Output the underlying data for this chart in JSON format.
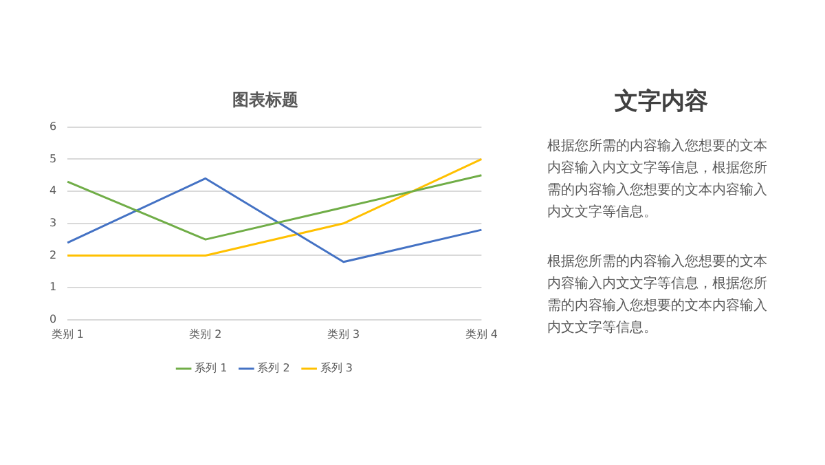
{
  "chart_data": [
    {
      "type": "line",
      "title": "图表标题",
      "categories": [
        "类别 1",
        "类别 2",
        "类别 3",
        "类别 4"
      ],
      "series": [
        {
          "name": "系列 1",
          "color": "#70ad47",
          "values": [
            4.3,
            2.5,
            3.5,
            4.5
          ]
        },
        {
          "name": "系列 2",
          "color": "#4472c4",
          "values": [
            2.4,
            4.4,
            1.8,
            2.8
          ]
        },
        {
          "name": "系列 3",
          "color": "#ffc000",
          "values": [
            2,
            2,
            3,
            5
          ]
        }
      ],
      "ylim": [
        0,
        6
      ],
      "yticks": [
        0,
        1,
        2,
        3,
        4,
        5,
        6
      ],
      "grid": "y",
      "legend": "bottom",
      "marker": "none"
    },
    {
      "type": "other",
      "title": "文字内容",
      "annotations": [
        "根据您所需的内容输入您想要的文本内容输入内文文字等信息，根据您所需的内容输入您想要的文本内容输入内文文字等信息。",
        "根据您所需的内容输入您想要的文本内容输入内文文字等信息，根据您所需的内容输入您想要的文本内容输入内文文字等信息。"
      ]
    }
  ]
}
